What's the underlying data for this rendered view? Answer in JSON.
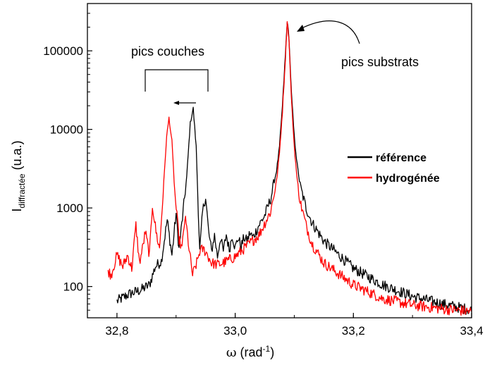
{
  "chart_data": {
    "type": "line",
    "xlabel": {
      "symbol": "ω",
      "text": " (rad",
      "sup": "-1",
      "close": ")"
    },
    "ylabel": {
      "main": "I",
      "sub": "diffractée",
      "rest": " (u.a.)"
    },
    "xlim": [
      32.75,
      33.4
    ],
    "ylim": [
      40,
      400000
    ],
    "yscale": "log",
    "grid": false,
    "legend_position": "right",
    "x_ticks": [
      {
        "value": 32.8,
        "label": "32,8"
      },
      {
        "value": 33.0,
        "label": "33,0"
      },
      {
        "value": 33.2,
        "label": "33,2"
      },
      {
        "value": 33.4,
        "label": "33,4"
      }
    ],
    "y_ticks": [
      {
        "value": 100,
        "label": "100"
      },
      {
        "value": 1000,
        "label": "1000"
      },
      {
        "value": 10000,
        "label": "10000"
      },
      {
        "value": 100000,
        "label": "100000"
      }
    ],
    "series": [
      {
        "name": "référence",
        "color": "#000000",
        "x": [
          32.8,
          32.82,
          32.84,
          32.855,
          32.865,
          32.875,
          32.885,
          32.893,
          32.9,
          32.905,
          32.912,
          32.918,
          32.924,
          32.929,
          32.934,
          32.94,
          32.945,
          32.95,
          32.955,
          32.96,
          32.965,
          32.97,
          32.975,
          32.98,
          32.985,
          32.99,
          32.995,
          33.0,
          33.005,
          33.01,
          33.015,
          33.02,
          33.025,
          33.03,
          33.035,
          33.04,
          33.05,
          33.06,
          33.07,
          33.075,
          33.08,
          33.085,
          33.088,
          33.091,
          33.095,
          33.1,
          33.105,
          33.11,
          33.12,
          33.13,
          33.15,
          33.2,
          33.25,
          33.3,
          33.35,
          33.4
        ],
        "y": [
          65,
          80,
          90,
          105,
          180,
          210,
          700,
          250,
          850,
          300,
          900,
          2500,
          12000,
          18500,
          6000,
          280,
          900,
          1400,
          500,
          280,
          450,
          240,
          420,
          280,
          460,
          290,
          450,
          310,
          420,
          320,
          420,
          380,
          480,
          420,
          500,
          600,
          800,
          1300,
          3000,
          6000,
          20000,
          90000,
          240000,
          150000,
          30000,
          8000,
          3500,
          1900,
          1000,
          650,
          380,
          170,
          105,
          75,
          60,
          50
        ]
      },
      {
        "name": "hydrogénée",
        "color": "#ff0000",
        "x": [
          32.785,
          32.79,
          32.8,
          32.81,
          32.818,
          32.825,
          32.832,
          32.838,
          32.843,
          32.848,
          32.855,
          32.86,
          32.866,
          32.872,
          32.878,
          32.884,
          32.888,
          32.893,
          32.898,
          32.905,
          32.91,
          32.915,
          32.918,
          32.922,
          32.928,
          32.935,
          32.94,
          32.945,
          32.95,
          32.96,
          32.97,
          32.98,
          33.0,
          33.02,
          33.04,
          33.06,
          33.07,
          33.075,
          33.08,
          33.085,
          33.088,
          33.091,
          33.095,
          33.1,
          33.105,
          33.11,
          33.12,
          33.13,
          33.15,
          33.2,
          33.25,
          33.3,
          33.35,
          33.4
        ],
        "y": [
          160,
          140,
          250,
          180,
          250,
          170,
          600,
          200,
          300,
          500,
          250,
          1100,
          500,
          300,
          1500,
          8000,
          14000,
          7000,
          1500,
          400,
          300,
          750,
          550,
          300,
          140,
          200,
          280,
          300,
          280,
          200,
          190,
          200,
          240,
          330,
          450,
          900,
          2200,
          5000,
          17000,
          80000,
          240000,
          140000,
          25000,
          6000,
          2200,
          1200,
          600,
          350,
          200,
          105,
          70,
          58,
          52,
          48
        ]
      }
    ],
    "annotations": [
      {
        "text": "pics couches"
      },
      {
        "text": "pics substrats"
      }
    ]
  }
}
